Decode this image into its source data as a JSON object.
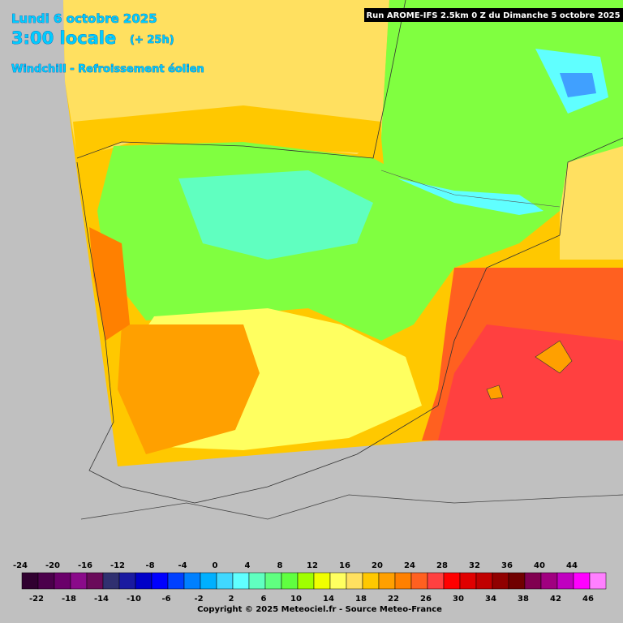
{
  "header": {
    "date": "Lundi 6 octobre 2025",
    "time": "3:00 locale",
    "lead": "(+ 25h)",
    "parameter": "Windchill - Refroissement éolien",
    "run": "Run AROME-IFS 2.5km 0 Z du Dimanche 5 octobre 2025"
  },
  "legend": {
    "items": [
      {
        "value": -24,
        "color": "#300030"
      },
      {
        "value": -22,
        "color": "#4b004b"
      },
      {
        "value": -20,
        "color": "#6a006a"
      },
      {
        "value": -18,
        "color": "#8a0a8a"
      },
      {
        "value": -16,
        "color": "#6a0a5a"
      },
      {
        "value": -14,
        "color": "#303070"
      },
      {
        "value": -12,
        "color": "#1a1aa0"
      },
      {
        "value": -10,
        "color": "#0000c8"
      },
      {
        "value": -8,
        "color": "#0000ff"
      },
      {
        "value": -6,
        "color": "#0040ff"
      },
      {
        "value": -4,
        "color": "#0080ff"
      },
      {
        "value": -2,
        "color": "#00b0ff"
      },
      {
        "value": 0,
        "color": "#40d8ff"
      },
      {
        "value": 2,
        "color": "#60ffff"
      },
      {
        "value": 4,
        "color": "#60ffc0"
      },
      {
        "value": 6,
        "color": "#60ff80"
      },
      {
        "value": 8,
        "color": "#60ff40"
      },
      {
        "value": 10,
        "color": "#a0ff00"
      },
      {
        "value": 12,
        "color": "#f0ff00"
      },
      {
        "value": 14,
        "color": "#ffff60"
      },
      {
        "value": 16,
        "color": "#ffe060"
      },
      {
        "value": 18,
        "color": "#ffc800"
      },
      {
        "value": 20,
        "color": "#ffa000"
      },
      {
        "value": 22,
        "color": "#ff8000"
      },
      {
        "value": 24,
        "color": "#ff6020"
      },
      {
        "value": 26,
        "color": "#ff4040"
      },
      {
        "value": 28,
        "color": "#ff0000"
      },
      {
        "value": 30,
        "color": "#e00000"
      },
      {
        "value": 32,
        "color": "#c00000"
      },
      {
        "value": 34,
        "color": "#900000"
      },
      {
        "value": 36,
        "color": "#700000"
      },
      {
        "value": 38,
        "color": "#800050"
      },
      {
        "value": 40,
        "color": "#a00080"
      },
      {
        "value": 42,
        "color": "#c000c0"
      },
      {
        "value": 44,
        "color": "#ff00ff"
      },
      {
        "value": 46,
        "color": "#ff80ff"
      }
    ]
  },
  "footer": {
    "copyright": "Copyright © 2025 Meteociel.fr - Source Meteo-France"
  }
}
